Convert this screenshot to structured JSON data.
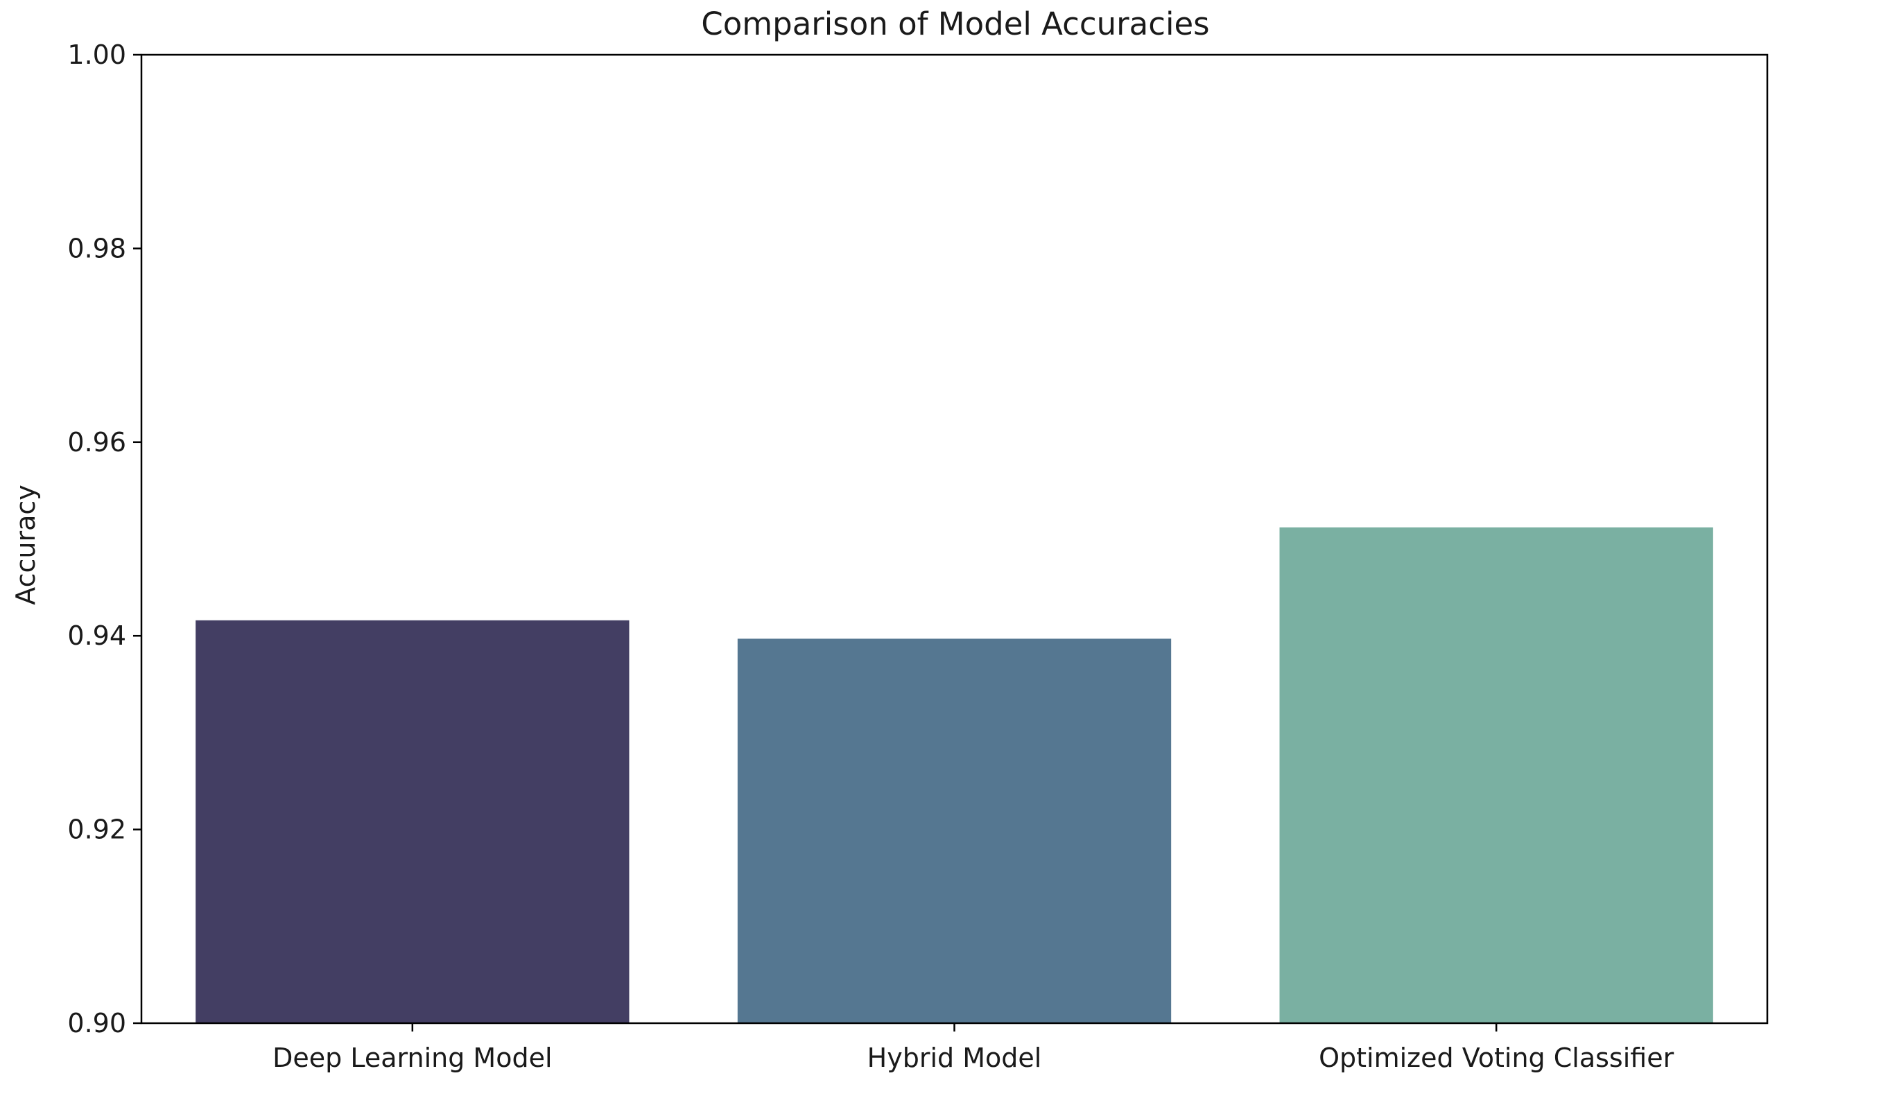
{
  "chart_data": {
    "type": "bar",
    "title": "Comparison of Model Accuracies",
    "xlabel": "",
    "ylabel": "Accuracy",
    "ylim": [
      0.9,
      1.0
    ],
    "yticks": [
      0.9,
      0.92,
      0.94,
      0.96,
      0.98,
      1.0
    ],
    "ytick_labels": [
      "0.90",
      "0.92",
      "0.94",
      "0.96",
      "0.98",
      "1.00"
    ],
    "categories": [
      "Deep Learning Model",
      "Hybrid Model",
      "Optimized Voting Classifier"
    ],
    "values": [
      0.9416,
      0.9397,
      0.9512
    ],
    "colors": [
      "#433e63",
      "#557791",
      "#7ab0a2"
    ],
    "grid": false,
    "legend": "none"
  }
}
